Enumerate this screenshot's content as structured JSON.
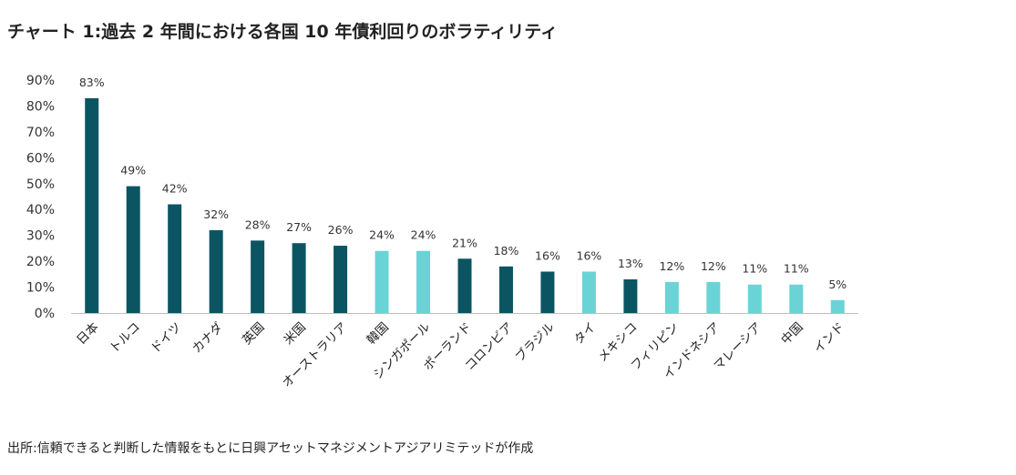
{
  "title": "チャート 1:過去 2 年間における各国 10 年債利回りのボラティリティ",
  "source": "出所:信頼できると判断した情報をもとに日興アセットマネジメントアジアリミテッドが作成",
  "colors": {
    "dark": "#0b5563",
    "light": "#6ad3d6",
    "axis": "#bdbdbd"
  },
  "chart_data": {
    "type": "bar",
    "title": "チャート 1:過去 2 年間における各国 10 年債利回りのボラティリティ",
    "xlabel": "",
    "ylabel": "",
    "ylim": [
      0,
      90
    ],
    "yticks": [
      "0%",
      "10%",
      "20%",
      "30%",
      "40%",
      "50%",
      "60%",
      "70%",
      "80%",
      "90%"
    ],
    "grid": false,
    "categories": [
      "日本",
      "トルコ",
      "ドイツ",
      "カナダ",
      "英国",
      "米国",
      "オーストラリア",
      "韓国",
      "シンガポール",
      "ポーランド",
      "コロンビア",
      "ブラジル",
      "タイ",
      "メキシコ",
      "フィリピン",
      "インドネシア",
      "マレーシア",
      "中国",
      "インド"
    ],
    "values": [
      83,
      49,
      42,
      32,
      28,
      27,
      26,
      24,
      24,
      21,
      18,
      16,
      16,
      13,
      12,
      12,
      11,
      11,
      5
    ],
    "labels": [
      "83%",
      "49%",
      "42%",
      "32%",
      "28%",
      "27%",
      "26%",
      "24%",
      "24%",
      "21%",
      "18%",
      "16%",
      "16%",
      "13%",
      "12%",
      "12%",
      "11%",
      "11%",
      "5%"
    ],
    "bar_colors": [
      "dark",
      "dark",
      "dark",
      "dark",
      "dark",
      "dark",
      "dark",
      "light",
      "light",
      "dark",
      "dark",
      "dark",
      "light",
      "dark",
      "light",
      "light",
      "light",
      "light",
      "light"
    ]
  }
}
